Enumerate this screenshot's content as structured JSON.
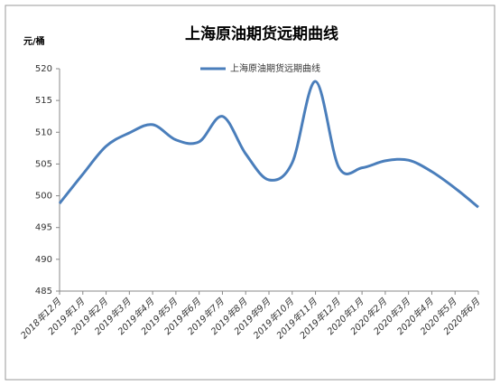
{
  "chart_data": {
    "type": "line",
    "title": "上海原油期货远期曲线",
    "y_label": "元/桶",
    "categories": [
      "2018年12月",
      "2019年1月",
      "2019年2月",
      "2019年3月",
      "2019年4月",
      "2019年5月",
      "2019年6月",
      "2019年7月",
      "2019年8月",
      "2019年9月",
      "2019年10月",
      "2019年11月",
      "2019年12月",
      "2020年1月",
      "2020年2月",
      "2020年3月",
      "2020年4月",
      "2020年5月",
      "2020年6月"
    ],
    "series": [
      {
        "name": "上海原油期货远期曲线",
        "color": "#4a7ebb",
        "values": [
          498.8,
          503.4,
          507.8,
          509.9,
          511.2,
          508.8,
          508.5,
          512.5,
          506.6,
          502.5,
          505.2,
          518.0,
          504.5,
          504.4,
          505.5,
          505.6,
          503.8,
          501.2,
          498.2
        ]
      }
    ],
    "ylim": [
      485,
      520
    ],
    "yticks": [
      485,
      490,
      495,
      500,
      505,
      510,
      515,
      520
    ],
    "grid": false,
    "legend": "top"
  }
}
